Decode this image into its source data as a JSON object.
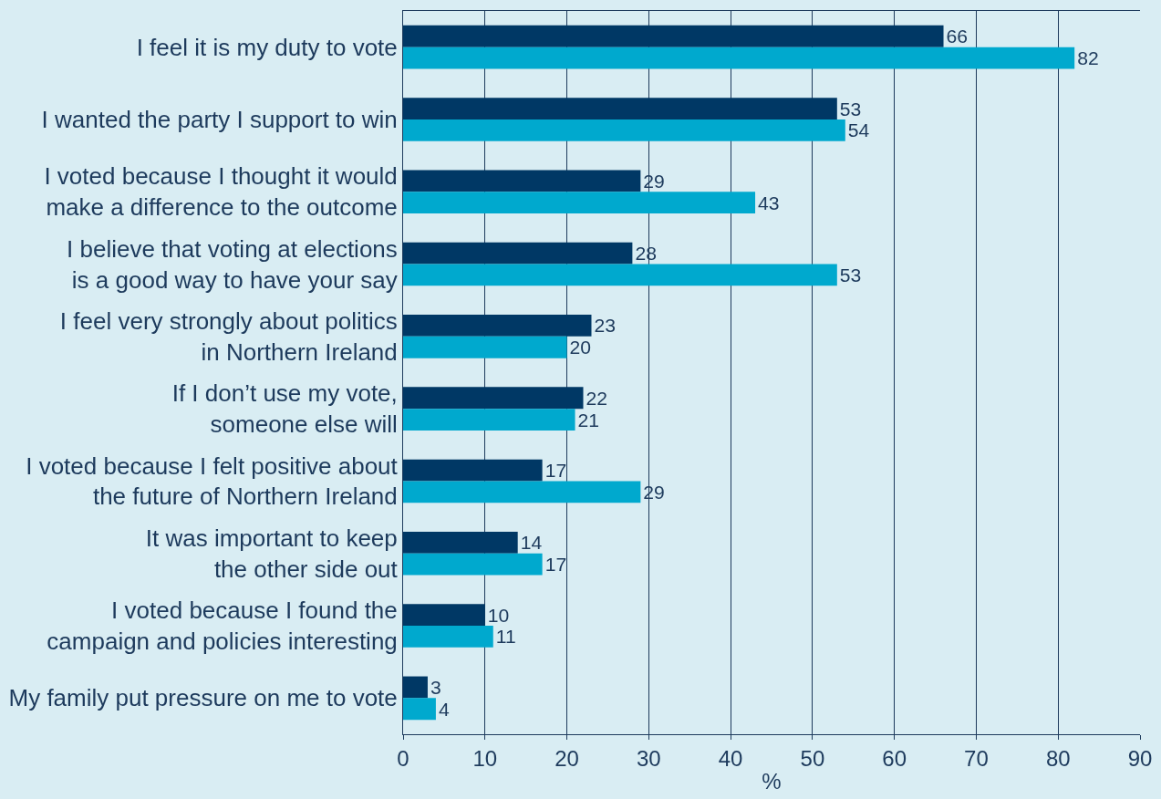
{
  "chart_data": {
    "type": "bar",
    "orientation": "horizontal",
    "xlabel": "%",
    "categories": [
      "I feel it is my duty to vote",
      "I wanted the party I support to win",
      "I voted because I thought it would\nmake a difference to the outcome",
      "I believe that voting at elections\nis a good way to have your say",
      "I feel very strongly about politics\nin Northern Ireland",
      "If I don’t use my vote,\nsomeone else will",
      "I voted because I felt positive about\nthe future of Northern Ireland",
      "It was important to keep\nthe other side out",
      "I voted because I found the\ncampaign and policies interesting",
      "My family put pressure on me to vote"
    ],
    "series": [
      {
        "color": "#003865",
        "values": [
          66,
          53,
          29,
          28,
          23,
          22,
          17,
          14,
          10,
          3
        ]
      },
      {
        "color": "#00a9ce",
        "values": [
          82,
          54,
          43,
          53,
          20,
          21,
          29,
          17,
          11,
          4
        ]
      }
    ],
    "xlim": [
      0,
      90
    ],
    "xticks": [
      0,
      10,
      20,
      30,
      40,
      50,
      60,
      70,
      80,
      90
    ],
    "grid": "x",
    "data_labels": true
  }
}
